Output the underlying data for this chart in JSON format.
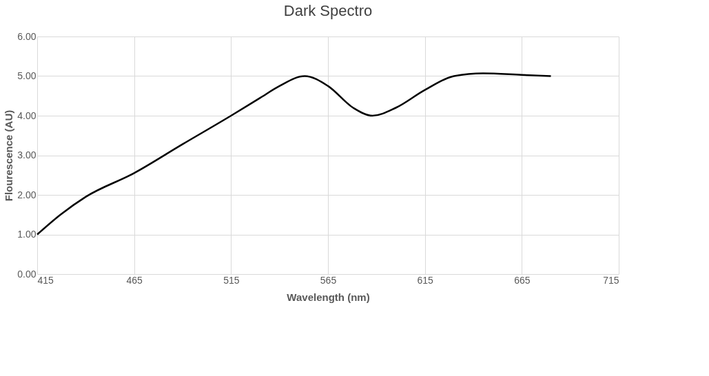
{
  "chart_data": {
    "type": "line",
    "title": "Dark Spectro",
    "xlabel": "Wavelength (nm)",
    "ylabel": "Flourescence (AU)",
    "x": [
      415,
      427,
      440,
      465,
      490,
      515,
      530,
      540,
      553,
      565,
      578,
      588,
      600,
      615,
      630,
      645,
      665,
      680
    ],
    "series": [
      {
        "color": "#000000",
        "values": [
          1.0,
          1.5,
          1.95,
          2.55,
          3.28,
          4.0,
          4.45,
          4.75,
          5.0,
          4.75,
          4.2,
          4.0,
          4.2,
          4.65,
          5.0,
          5.07,
          5.03,
          5.0
        ]
      }
    ],
    "xlim": [
      415,
      715
    ],
    "xticks": [
      415,
      465,
      515,
      565,
      615,
      665,
      715
    ],
    "ylim": [
      0,
      6
    ],
    "yticks": [
      {
        "value": 0,
        "label": "0.00"
      },
      {
        "value": 1,
        "label": "1.00"
      },
      {
        "value": 2,
        "label": "2.00"
      },
      {
        "value": 3,
        "label": "3.00"
      },
      {
        "value": 4,
        "label": "4.00"
      },
      {
        "value": 5,
        "label": "5.00"
      },
      {
        "value": 6,
        "label": "6.00"
      }
    ],
    "grid": true,
    "marker": "none",
    "line_style": "solid"
  }
}
